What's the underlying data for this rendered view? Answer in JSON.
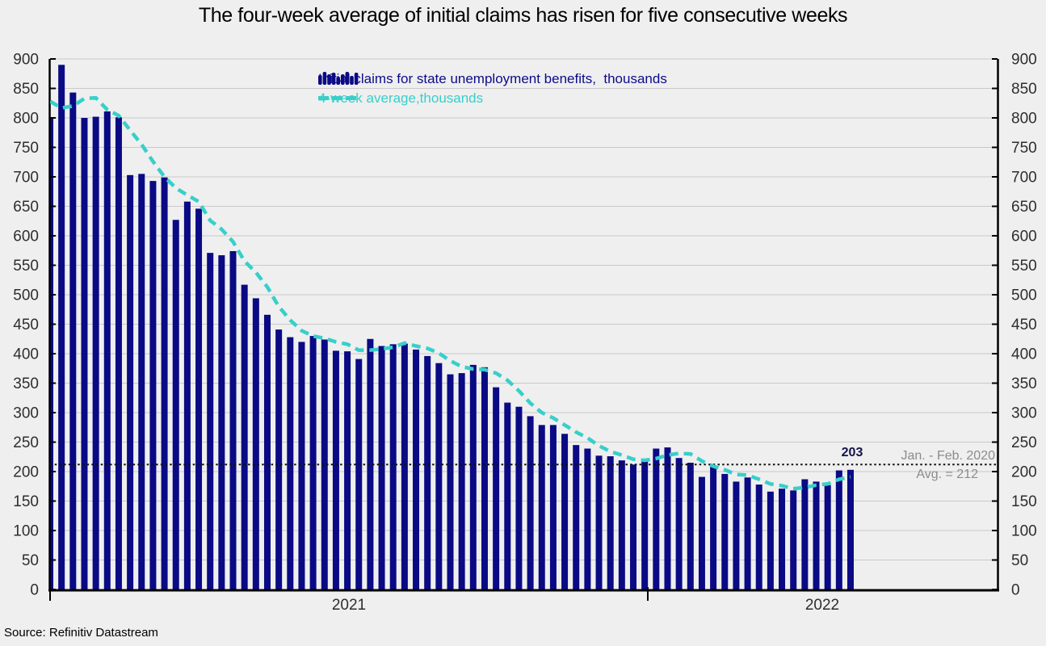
{
  "title": "The four-week average of initial claims has risen for five consecutive weeks",
  "source": "Source: Refinitiv Datastream",
  "legend": {
    "bars_label": "Initial claims for state unemployment benefits,  thousands",
    "line_label": "4-week average,thousands"
  },
  "annotations": {
    "last_value": "203",
    "ref_period": "Jan. - Feb. 2020",
    "ref_avg": "Avg. = 212"
  },
  "x_axis": {
    "labels": [
      "2021",
      "2022"
    ]
  },
  "y_axis": {
    "ticks": [
      0,
      50,
      100,
      150,
      200,
      250,
      300,
      350,
      400,
      450,
      500,
      550,
      600,
      650,
      700,
      750,
      800,
      850,
      900
    ],
    "min": 0,
    "max": 900
  },
  "colors": {
    "bar": "#0a0a85",
    "line": "#38cfca",
    "grid": "#c9c9c9",
    "axis": "#000000",
    "axis_text": "#2e2e2e",
    "legend_text": "#0b0b8a",
    "annotation_gray": "#8c8c8c",
    "last_value_color": "#13134b",
    "ref_dotted": "#111111",
    "background": "#efefef"
  },
  "chart_data": {
    "type": "bar",
    "title": "The four-week average of initial claims has risen for five consecutive weeks",
    "x_unit": "week",
    "x_range_labels": [
      "2021",
      "2022"
    ],
    "ylim": [
      0,
      900
    ],
    "grid": true,
    "legend_position": "top-center",
    "reference_line": {
      "value": 212,
      "label": "Jan. - Feb. 2020 Avg. = 212",
      "style": "dotted"
    },
    "last_point_label": {
      "series": "initial_claims",
      "value": 203
    },
    "series": [
      {
        "name": "Initial claims for state unemployment benefits, thousands",
        "type": "bar",
        "values": [
          800,
          890,
          843,
          800,
          802,
          811,
          801,
          703,
          705,
          693,
          699,
          627,
          658,
          646,
          571,
          567,
          574,
          517,
          494,
          466,
          441,
          428,
          420,
          430,
          424,
          405,
          404,
          391,
          425,
          413,
          416,
          417,
          407,
          396,
          384,
          365,
          367,
          381,
          377,
          343,
          317,
          310,
          294,
          279,
          279,
          264,
          245,
          239,
          227,
          226,
          219,
          212,
          219,
          239,
          241,
          223,
          215,
          191,
          208,
          196,
          183,
          190,
          178,
          166,
          171,
          168,
          187,
          183,
          177,
          202,
          203
        ]
      },
      {
        "name": "4-week average, thousands",
        "type": "line",
        "values": [
          828,
          817,
          820,
          833,
          834,
          814,
          804,
          779,
          755,
          726,
          700,
          681,
          669,
          658,
          626,
          611,
          590,
          557,
          538,
          513,
          480,
          457,
          439,
          430,
          426,
          420,
          416,
          406,
          406,
          408,
          411,
          418,
          413,
          409,
          401,
          388,
          378,
          374,
          373,
          367,
          355,
          337,
          316,
          300,
          291,
          279,
          267,
          257,
          244,
          234,
          228,
          221,
          219,
          222,
          228,
          231,
          230,
          218,
          209,
          203,
          195,
          194,
          187,
          179,
          176,
          171,
          173,
          177,
          179,
          187,
          191
        ]
      }
    ]
  }
}
